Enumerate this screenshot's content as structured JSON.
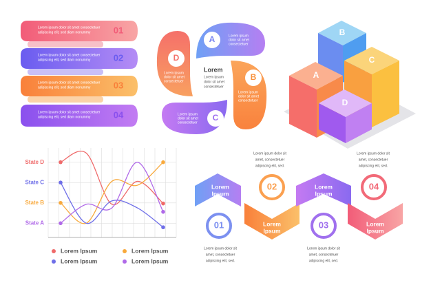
{
  "banners": [
    {
      "number": "01",
      "text": [
        "Lorem ipsum dolor sit amet consectetuer",
        "adipiscing elit, sed diam nonummy"
      ]
    },
    {
      "number": "02",
      "text": [
        "Lorem ipsum dolor sit amet consectetuer",
        "adipiscing elit, sed diam nonummy"
      ]
    },
    {
      "number": "03",
      "text": [
        "Lorem ipsum dolor sit amet consectetuer",
        "adipiscing elit, sed diam nonummy"
      ]
    },
    {
      "number": "04",
      "text": [
        "Lorem ipsum dolor sit amet consectetuer",
        "adipiscing elit, sed diam nonummy"
      ]
    }
  ],
  "pinwheel": {
    "center_title": "Lorem",
    "center_text": [
      "Lorem ipsum",
      "dolor sit amet",
      "consectetuer"
    ],
    "petals": [
      {
        "label": "A",
        "text": [
          "Lorem ipsum",
          "dolor sit amet",
          "consectetuer"
        ]
      },
      {
        "label": "B",
        "text": [
          "Lorem ipsum",
          "dolor sit amet",
          "consectetuer"
        ]
      },
      {
        "label": "C",
        "text": [
          "Lorem ipsum",
          "dolor sit amet",
          "consectetuer"
        ]
      },
      {
        "label": "D",
        "text": [
          "Lorem ipsum",
          "dolor sit amet",
          "consectetuer"
        ]
      }
    ]
  },
  "cubes": [
    "A",
    "B",
    "C",
    "D"
  ],
  "chart_data": {
    "type": "line",
    "categories": [
      null,
      null,
      null,
      null,
      null
    ],
    "ylim": [
      -0.7,
      3.7
    ],
    "yticks": [
      {
        "value": 0,
        "label": "State A"
      },
      {
        "value": 1,
        "label": "State B"
      },
      {
        "value": 2,
        "label": "State C"
      },
      {
        "value": 3,
        "label": "State D"
      }
    ],
    "grid": true,
    "series": [
      {
        "name": "Lorem Ipsum",
        "color": "#ef6a6a",
        "values": [
          3,
          3.45,
          0.93,
          2.06,
          0.97
        ]
      },
      {
        "name": "Lorem Ipsum",
        "color": "#f8a93c",
        "values": [
          1,
          0,
          2.06,
          1.87,
          3
        ]
      },
      {
        "name": "Lorem Ipsum",
        "color": "#6f6fe8",
        "values": [
          2,
          0,
          1.1,
          0.75,
          -0.2
        ]
      },
      {
        "name": "Lorem Ipsum",
        "color": "#b06ae8",
        "values": [
          0,
          0.93,
          0.75,
          3,
          0.56
        ]
      }
    ]
  },
  "chevrons": {
    "steps": [
      {
        "number": "01",
        "title": [
          "Lorem",
          "Ipsum"
        ],
        "text": [
          "Lorem ipsum dolor sit",
          "amet, consectetuer",
          "adipiscing elit, sed."
        ]
      },
      {
        "number": "02",
        "title": [
          "Lorem",
          "Ipsum"
        ],
        "text": [
          "Lorem ipsum dolor sit",
          "amet, consectetuer",
          "adipiscing elit, sed."
        ]
      },
      {
        "number": "03",
        "title": [
          "Lorem",
          "Ipsum"
        ],
        "text": [
          "Lorem ipsum dolor sit",
          "amet, consectetuer",
          "adipiscing elit, sed."
        ]
      },
      {
        "number": "04",
        "title": [
          "Lorem",
          "Ipsum"
        ],
        "text": [
          "Lorem ipsum dolor sit",
          "amet, consectetuer",
          "adipiscing elit, sed."
        ]
      }
    ]
  }
}
